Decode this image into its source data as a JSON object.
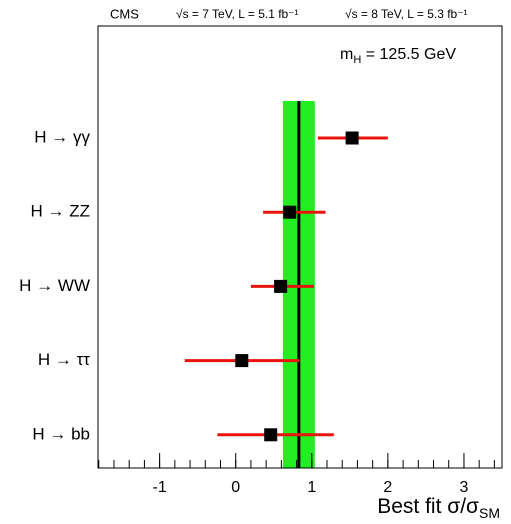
{
  "chart_data": {
    "type": "errorbar",
    "header": [
      "CMS",
      "√s = 7 TeV, L = 5.1 fb⁻¹",
      "√s = 8 TeV, L = 5.3 fb⁻¹"
    ],
    "annotation": {
      "main": "m",
      "sub": "H",
      "rest": " = 125.5 GeV"
    },
    "x_label": {
      "main": "Best fit σ/σ",
      "sub": "SM"
    },
    "categories": [
      "H → γγ",
      "H → ZZ",
      "H → WW",
      "H → ττ",
      "H → bb"
    ],
    "series": [
      {
        "color": "#e8140c",
        "marker_color": "#000000",
        "values": [
          1.53,
          0.71,
          0.59,
          0.08,
          0.46
        ],
        "low": [
          1.08,
          0.36,
          0.2,
          -0.67,
          -0.24
        ],
        "high": [
          2.0,
          1.18,
          1.03,
          0.84,
          1.29
        ]
      }
    ],
    "combined": {
      "value": 0.83,
      "low": 0.62,
      "high": 1.04,
      "color": "#22ee22"
    },
    "xlim": [
      -1.81,
      3.5
    ],
    "xticks": [
      -1,
      0,
      1,
      2,
      3
    ]
  }
}
